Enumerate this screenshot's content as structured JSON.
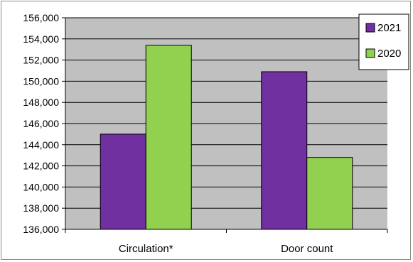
{
  "chart_data": {
    "type": "bar",
    "title": "",
    "xlabel": "",
    "ylabel": "",
    "categories": [
      "Circulation*",
      "Door count"
    ],
    "series": [
      {
        "name": "2021",
        "color": "#7030a0",
        "values": [
          145000,
          150900
        ]
      },
      {
        "name": "2020",
        "color": "#92d050",
        "values": [
          153400,
          142800
        ]
      }
    ],
    "ylim": [
      136000,
      156000
    ],
    "y_ticks": [
      136000,
      138000,
      140000,
      142000,
      144000,
      146000,
      148000,
      150000,
      152000,
      154000,
      156000
    ],
    "y_tick_labels": [
      "136,000",
      "138,000",
      "140,000",
      "142,000",
      "144,000",
      "146,000",
      "148,000",
      "150,000",
      "152,000",
      "154,000",
      "156,000"
    ],
    "plot_background": "#c0c0c0",
    "grid": true,
    "legend_position": "top-right"
  }
}
